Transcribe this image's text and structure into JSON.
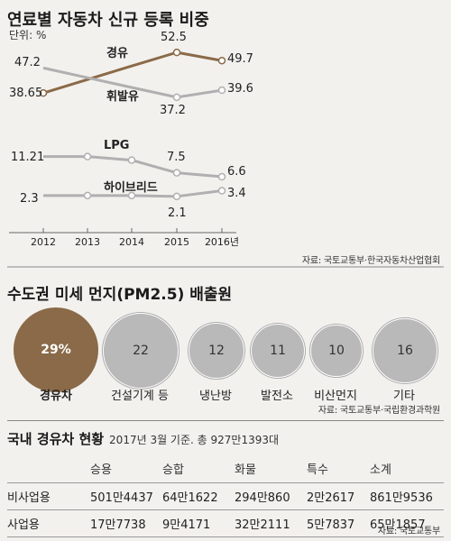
{
  "chart1": {
    "title": "연료별 자동차 신규 등록 비중",
    "unit": "단위: %",
    "source": "자료: 국토교통부·한국자동차산업협회",
    "chart_data": {
      "type": "line",
      "x": [
        "2012",
        "2013",
        "2014",
        "2015",
        "2016년"
      ],
      "panels": [
        {
          "series": [
            {
              "name": "경유",
              "values": [
                38.65,
                null,
                null,
                52.5,
                49.7
              ],
              "color": "#8a6a48"
            },
            {
              "name": "휘발유",
              "values": [
                47.2,
                null,
                null,
                37.2,
                39.6
              ],
              "color": "#b0b0b0"
            }
          ],
          "labels": [
            "38.65",
            "52.5",
            "49.7",
            "47.2",
            "37.2",
            "39.6"
          ]
        },
        {
          "series": [
            {
              "name": "LPG",
              "values": [
                11.21,
                11.21,
                10.4,
                7.5,
                6.6
              ],
              "color": "#b0b0b0"
            },
            {
              "name": "하이브리드",
              "values": [
                2.3,
                2.3,
                2.3,
                2.1,
                3.4
              ],
              "color": "#b0b0b0"
            }
          ],
          "labels": [
            "11.21",
            "7.5",
            "6.6",
            "2.3",
            "2.1",
            "3.4"
          ]
        }
      ]
    }
  },
  "chart2": {
    "title": "수도권 미세 먼지(PM2.5) 배출원",
    "source": "자료: 국토교통부·국립환경과학원",
    "chart_data": {
      "type": "bubble",
      "categories": [
        "경유차",
        "건설기계 등",
        "냉난방",
        "발전소",
        "비산먼지",
        "기타"
      ],
      "values": [
        29,
        22,
        12,
        11,
        10,
        16
      ],
      "labels": [
        "29%",
        "22",
        "12",
        "11",
        "10",
        "16"
      ],
      "highlight_color": "#8a6a48",
      "color": "#b9b9b9"
    }
  },
  "table": {
    "title": "국내 경유차 현황",
    "subtitle": "2017년 3월 기준. 총 927만1393대",
    "headers": [
      "",
      "승용",
      "승합",
      "화물",
      "특수",
      "소계"
    ],
    "rows": [
      [
        "비사업용",
        "501만4437",
        "64만1622",
        "294만860",
        "2만2617",
        "861만9536"
      ],
      [
        "사업용",
        "17만7738",
        "9만4171",
        "32만2111",
        "5만7837",
        "65만1857"
      ]
    ],
    "source": "자료: 국토교통부"
  }
}
